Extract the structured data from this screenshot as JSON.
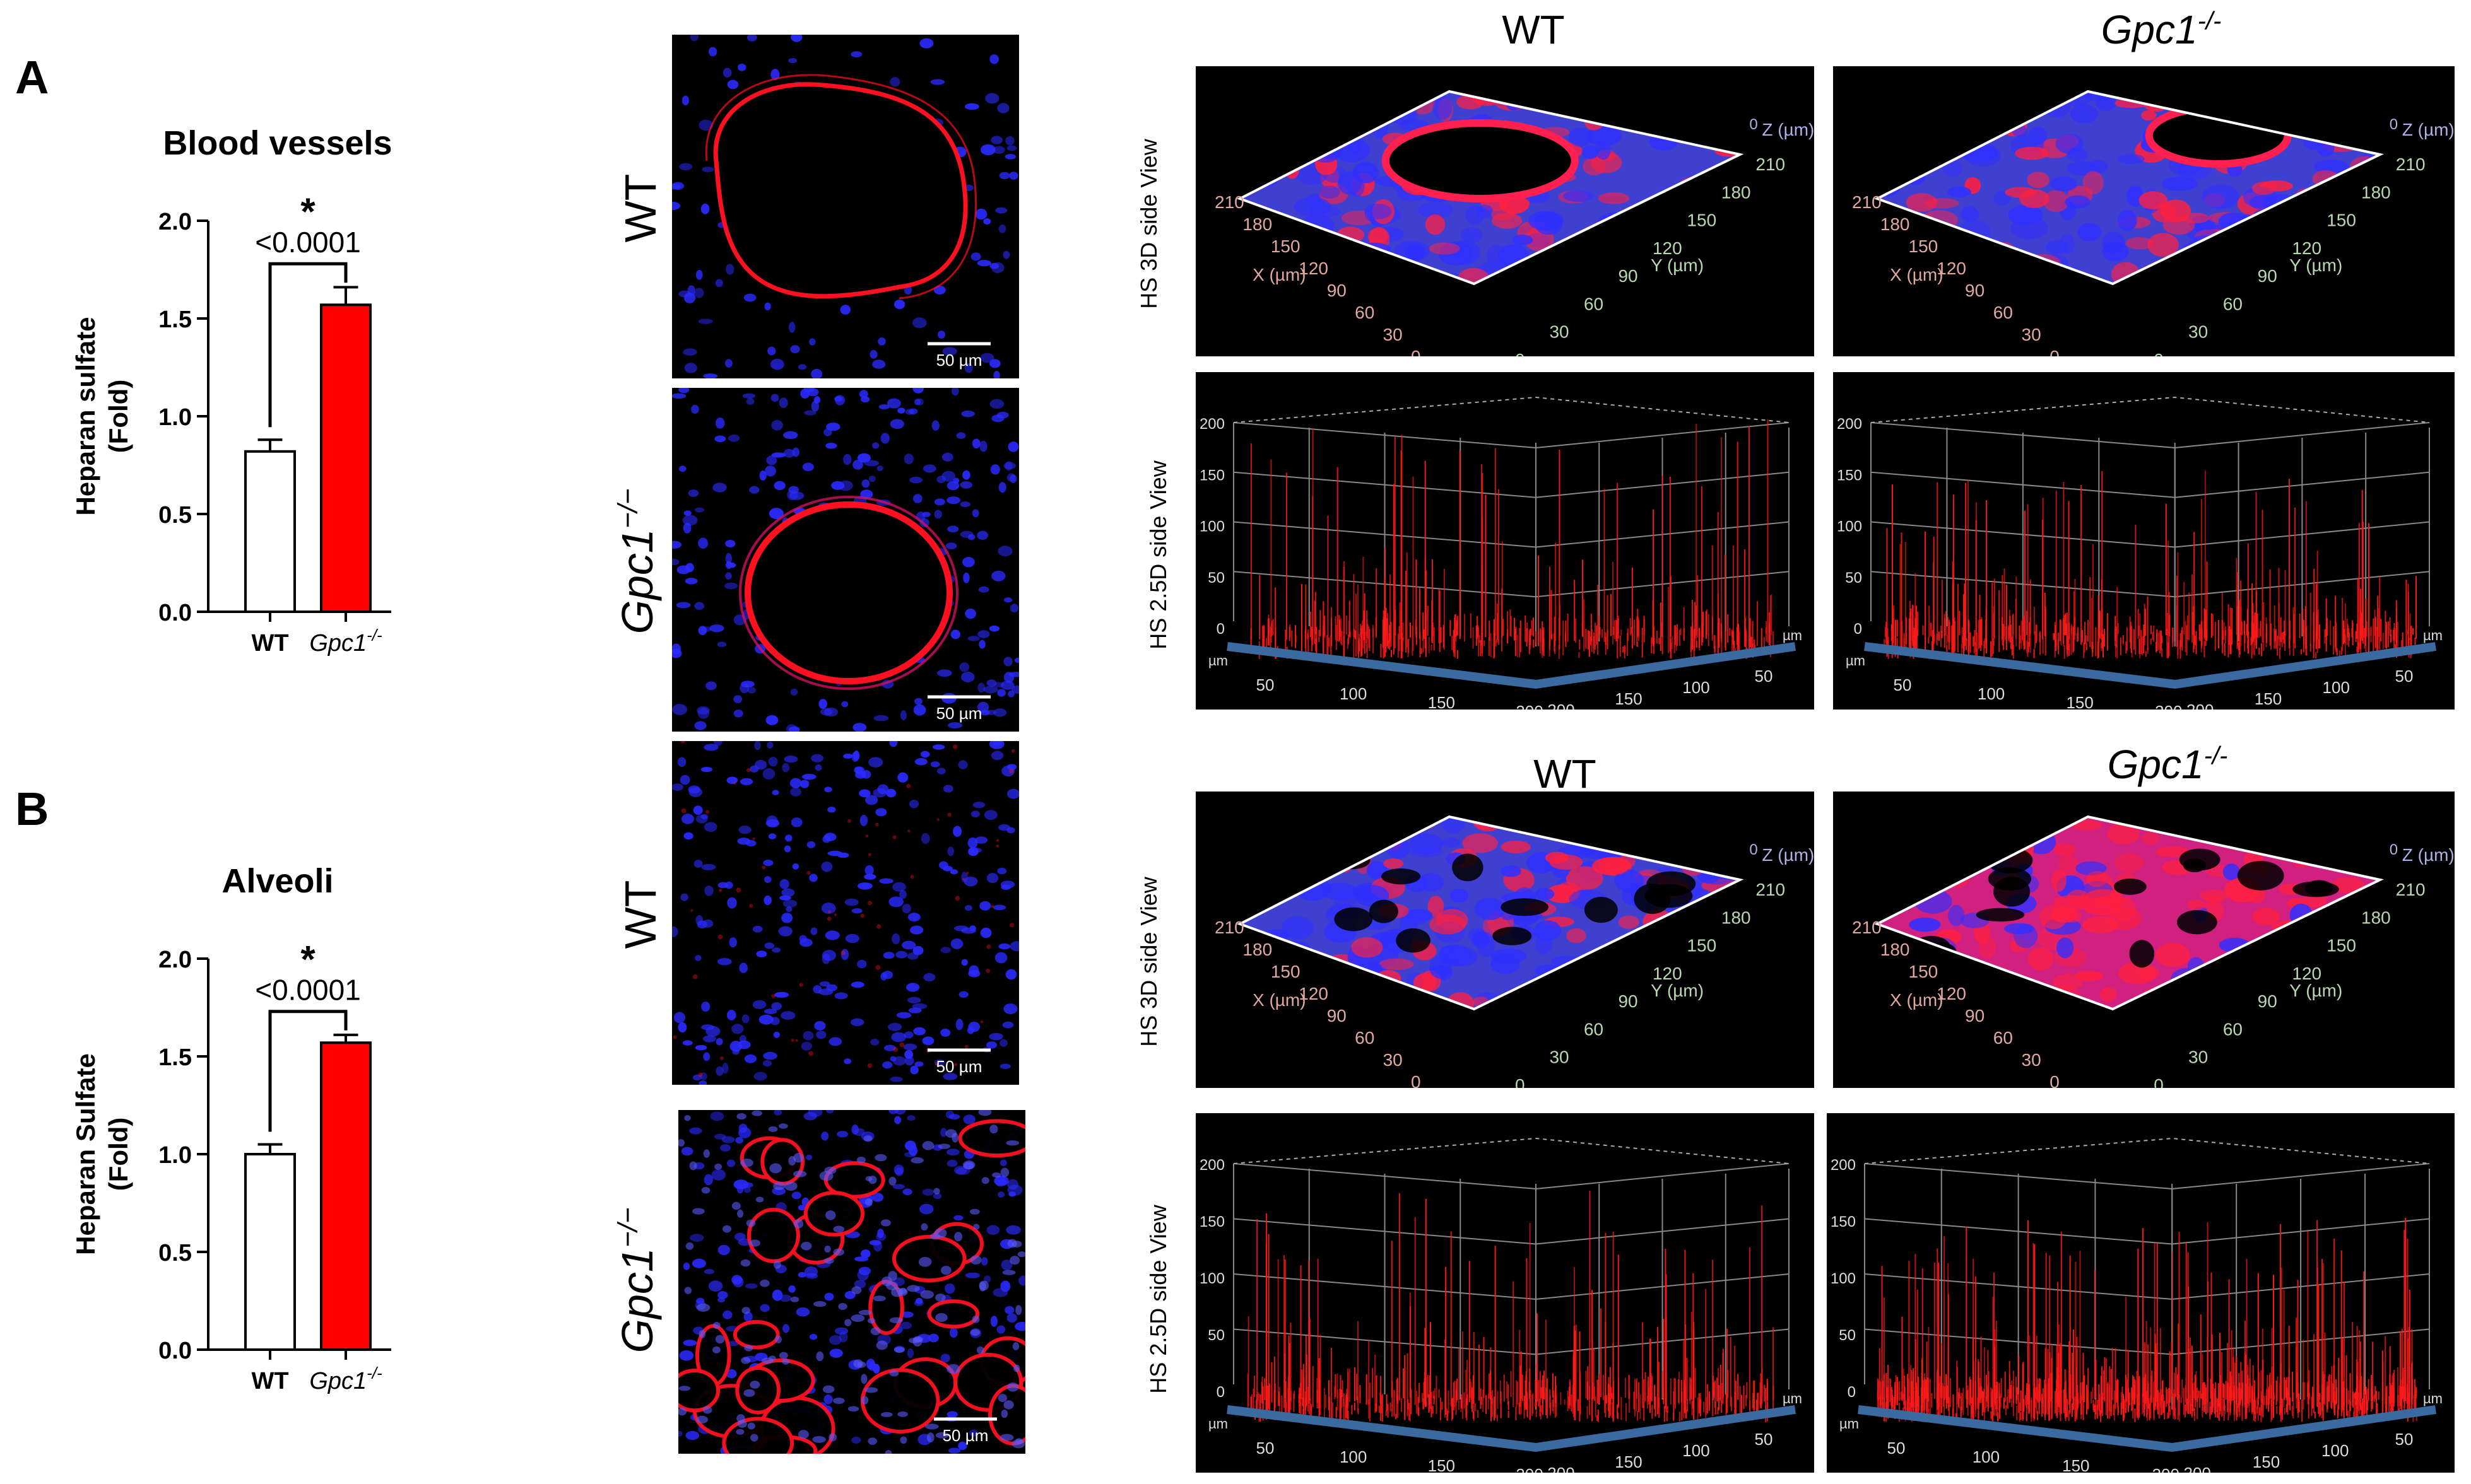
{
  "panels": [
    {
      "letter": "A"
    },
    {
      "letter": "B"
    }
  ],
  "chart_data": [
    {
      "type": "bar",
      "title": "Blood vessels",
      "ylabel_line1": "Heparan sulfate",
      "ylabel_line2": "(Fold)",
      "categories": [
        "WT",
        "Gpc1"
      ],
      "category_superscript": [
        "",
        "-/-"
      ],
      "values": [
        0.82,
        1.57
      ],
      "errors": [
        0.06,
        0.09
      ],
      "bar_colors": [
        "#ffffff",
        "#ff0000"
      ],
      "ylim": [
        0,
        2.0
      ],
      "yticks": [
        "0.0",
        "0.5",
        "1.0",
        "1.5",
        "2.0"
      ],
      "significance_star": "*",
      "p_value": "<0.0001"
    },
    {
      "type": "bar",
      "title": "Alveoli",
      "ylabel_line1": "Heparan Sulfate",
      "ylabel_line2": "(Fold)",
      "categories": [
        "WT",
        "Gpc1"
      ],
      "category_superscript": [
        "",
        "-/-"
      ],
      "values": [
        1.0,
        1.57
      ],
      "errors": [
        0.05,
        0.04
      ],
      "bar_colors": [
        "#ffffff",
        "#ff0000"
      ],
      "ylim": [
        0,
        2.0
      ],
      "yticks": [
        "0.0",
        "0.5",
        "1.0",
        "1.5",
        "2.0"
      ],
      "significance_star": "*",
      "p_value": "<0.0001"
    }
  ],
  "micrographs": {
    "scale_bar": "50 µm",
    "rows": [
      {
        "label": "WT",
        "italic": false
      },
      {
        "label": "Gpc1",
        "sup": "−/−",
        "italic": true
      },
      {
        "label": "WT",
        "italic": false
      },
      {
        "label": "Gpc1",
        "sup": "−/−",
        "italic": true
      }
    ]
  },
  "surface_plots": {
    "groups": [
      {
        "col1": "WT",
        "col2": "Gpc1",
        "col2_sup": "-/-"
      },
      {
        "col1": "WT",
        "col2": "Gpc1",
        "col2_sup": "-/-"
      }
    ],
    "view_3d_label": "HS 3D side View",
    "view_25d_label": "HS 2.5D side View",
    "axis_3d": {
      "x_label": "X (µm)",
      "y_label": "Y (µm)",
      "z_label": "Z (µm)",
      "ticks": [
        "210",
        "180",
        "150",
        "120",
        "90",
        "60",
        "30",
        "0"
      ],
      "z_zero": "0"
    },
    "axis_25d": {
      "z_ticks": [
        "200",
        "150",
        "100",
        "50",
        "0"
      ],
      "x_ticks": [
        "50",
        "100",
        "150",
        "200"
      ],
      "y_ticks": [
        "200",
        "150",
        "100",
        "50"
      ],
      "unit": "µm"
    }
  },
  "colors": {
    "nuclei": "#2a2aff",
    "heparan_sulfate": "#ff1020",
    "background": "#000000"
  }
}
